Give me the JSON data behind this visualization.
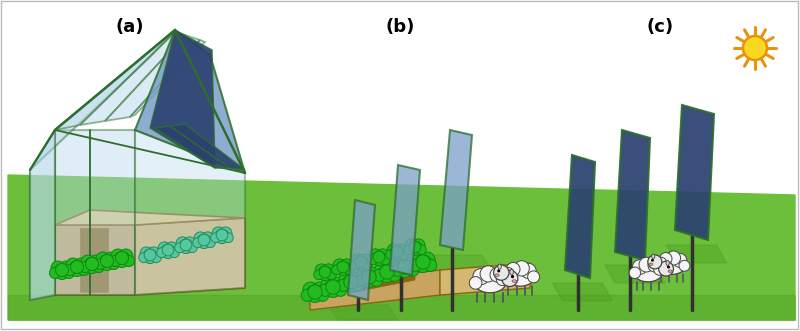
{
  "background_color": "#ffffff",
  "grass_color": "#6bbf3a",
  "grass_dark": "#4a9a20",
  "panel_a_label": "(a)",
  "panel_b_label": "(b)",
  "panel_c_label": "(c)",
  "label_fontsize": 13,
  "glass_color": "#b8d8ec",
  "glass_edge": "#2d6e2d",
  "solar_blue_light": "#7a9fc8",
  "solar_blue_dark": "#2a4070",
  "soil_light": "#c8a460",
  "soil_dark": "#8b6410",
  "plant_bright": "#22bb22",
  "plant_dark": "#0d8a0d",
  "plant_teal": "#55c8a0",
  "plant_teal_dark": "#2a8a60",
  "shadow_color": "#3a8a10",
  "pole_color": "#303030",
  "sun_orange": "#e8920e",
  "sun_yellow": "#f8d820",
  "sheep_white": "#f5f5f5",
  "border_color": "#bbbbbb",
  "figsize": [
    8.0,
    3.31
  ],
  "dpi": 100
}
